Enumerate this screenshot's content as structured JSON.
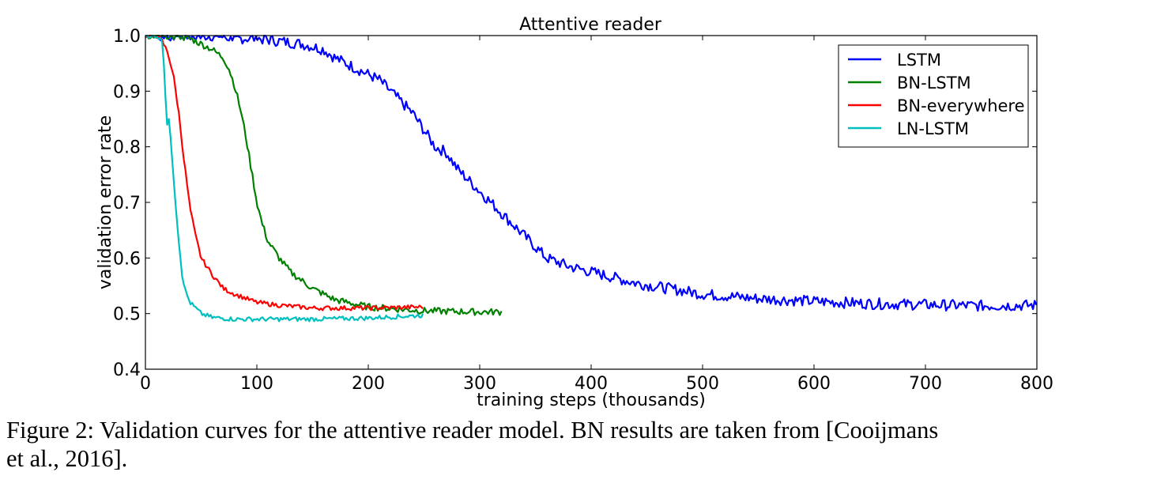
{
  "chart_data": {
    "type": "line",
    "title": "Attentive reader",
    "xlabel": "training steps (thousands)",
    "ylabel": "validation error rate",
    "xlim": [
      0,
      800
    ],
    "ylim": [
      0.4,
      1.0
    ],
    "xticks": [
      "0",
      "100",
      "200",
      "300",
      "400",
      "500",
      "600",
      "700",
      "800"
    ],
    "yticks": [
      "0.4",
      "0.5",
      "0.6",
      "0.7",
      "0.8",
      "0.9",
      "1.0"
    ],
    "grid": false,
    "legend_position": "top-right",
    "series": [
      {
        "name": "LSTM",
        "color": "#0000ff",
        "x": [
          0,
          20,
          40,
          60,
          80,
          100,
          120,
          140,
          150,
          160,
          170,
          180,
          190,
          200,
          210,
          220,
          230,
          240,
          250,
          260,
          270,
          280,
          290,
          300,
          310,
          320,
          330,
          340,
          350,
          360,
          380,
          400,
          420,
          440,
          460,
          480,
          500,
          550,
          600,
          650,
          700,
          750,
          800
        ],
        "y": [
          1.0,
          1.0,
          1.0,
          1.0,
          0.995,
          0.995,
          0.99,
          0.985,
          0.98,
          0.975,
          0.96,
          0.95,
          0.94,
          0.93,
          0.92,
          0.9,
          0.88,
          0.86,
          0.83,
          0.8,
          0.79,
          0.76,
          0.74,
          0.72,
          0.7,
          0.68,
          0.66,
          0.64,
          0.62,
          0.6,
          0.585,
          0.575,
          0.565,
          0.555,
          0.548,
          0.542,
          0.535,
          0.527,
          0.522,
          0.518,
          0.516,
          0.514,
          0.515
        ],
        "noise": 0.01
      },
      {
        "name": "BN-LSTM",
        "color": "#008000",
        "x": [
          0,
          20,
          40,
          50,
          60,
          70,
          75,
          80,
          85,
          90,
          95,
          100,
          105,
          110,
          120,
          130,
          140,
          150,
          170,
          200,
          250,
          300,
          320
        ],
        "y": [
          1.0,
          1.0,
          0.995,
          0.985,
          0.975,
          0.96,
          0.94,
          0.91,
          0.87,
          0.82,
          0.76,
          0.7,
          0.66,
          0.63,
          0.6,
          0.575,
          0.56,
          0.545,
          0.525,
          0.512,
          0.505,
          0.503,
          0.503
        ],
        "noise": 0.006
      },
      {
        "name": "BN-everywhere",
        "color": "#ff0000",
        "x": [
          0,
          10,
          15,
          20,
          25,
          30,
          35,
          40,
          45,
          50,
          60,
          70,
          80,
          100,
          120,
          150,
          200,
          250
        ],
        "y": [
          1.0,
          1.0,
          0.99,
          0.97,
          0.93,
          0.86,
          0.77,
          0.69,
          0.64,
          0.6,
          0.57,
          0.545,
          0.535,
          0.52,
          0.515,
          0.51,
          0.51,
          0.512
        ],
        "noise": 0.004
      },
      {
        "name": "LN-LSTM",
        "color": "#00bfbf",
        "x": [
          0,
          10,
          15,
          17,
          19,
          21,
          24,
          27,
          30,
          33,
          36,
          40,
          45,
          50,
          60,
          80,
          100,
          150,
          200,
          250
        ],
        "y": [
          1.0,
          1.0,
          0.99,
          0.94,
          0.84,
          0.85,
          0.78,
          0.7,
          0.63,
          0.57,
          0.54,
          0.52,
          0.51,
          0.5,
          0.493,
          0.49,
          0.49,
          0.49,
          0.492,
          0.497
        ],
        "noise": 0.004
      }
    ]
  },
  "caption": {
    "line1": "Figure 2: Validation curves for the attentive reader model. BN results are taken from [Cooijmans",
    "line2": "et al., 2016]."
  }
}
